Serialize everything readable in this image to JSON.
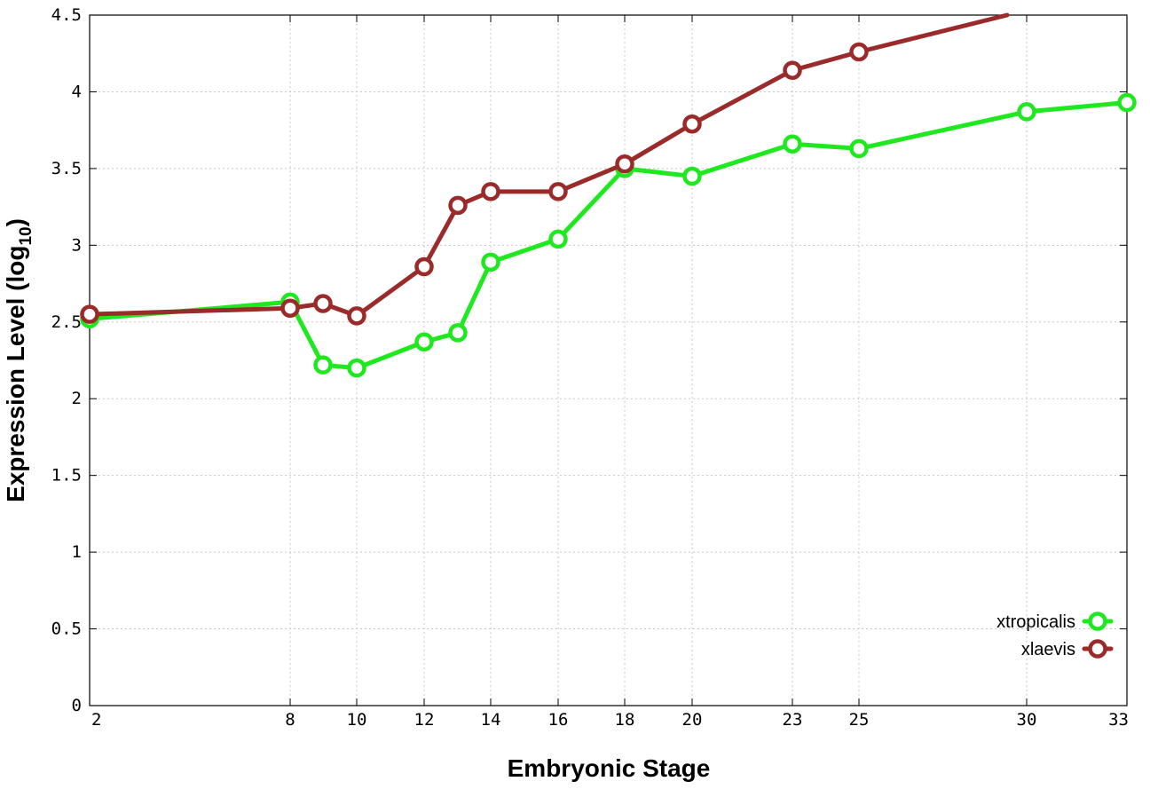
{
  "chart_data": {
    "type": "line",
    "xlabel": "Embryonic Stage",
    "ylabel": "Expression Level (log",
    "ylabel_subscript": "10",
    "ylabel_close": ")",
    "ylim": [
      0,
      4.5
    ],
    "yticks": [
      "0",
      "0.5",
      "1",
      "1.5",
      "2",
      "2.5",
      "3",
      "3.5",
      "4",
      "4.5"
    ],
    "x_categories": [
      "2",
      "8",
      "9",
      "10",
      "12",
      "13",
      "14",
      "16",
      "18",
      "20",
      "23",
      "25",
      "29",
      "30",
      "33"
    ],
    "xtick_labels": [
      "2",
      "8",
      "10",
      "12",
      "14",
      "16",
      "18",
      "20",
      "23",
      "25",
      "30",
      "33"
    ],
    "grid": true,
    "legend_position": "bottom-right",
    "series": [
      {
        "name": "xtropicalis",
        "color": "#1ee81e",
        "points": [
          {
            "x": "2",
            "y": 2.52
          },
          {
            "x": "8",
            "y": 2.63
          },
          {
            "x": "9",
            "y": 2.22
          },
          {
            "x": "10",
            "y": 2.2
          },
          {
            "x": "12",
            "y": 2.37
          },
          {
            "x": "13",
            "y": 2.43
          },
          {
            "x": "14",
            "y": 2.89
          },
          {
            "x": "16",
            "y": 3.04
          },
          {
            "x": "18",
            "y": 3.5
          },
          {
            "x": "20",
            "y": 3.45
          },
          {
            "x": "23",
            "y": 3.66
          },
          {
            "x": "25",
            "y": 3.63
          },
          {
            "x": "30",
            "y": 3.87
          },
          {
            "x": "33",
            "y": 3.93
          }
        ]
      },
      {
        "name": "xlaevis",
        "color": "#9b2b2b",
        "points": [
          {
            "x": "2",
            "y": 2.55
          },
          {
            "x": "8",
            "y": 2.59
          },
          {
            "x": "9",
            "y": 2.62
          },
          {
            "x": "10",
            "y": 2.54
          },
          {
            "x": "12",
            "y": 2.86
          },
          {
            "x": "13",
            "y": 3.26
          },
          {
            "x": "14",
            "y": 3.35
          },
          {
            "x": "16",
            "y": 3.35
          },
          {
            "x": "18",
            "y": 3.53
          },
          {
            "x": "20",
            "y": 3.79
          },
          {
            "x": "23",
            "y": 4.14
          },
          {
            "x": "25",
            "y": 4.26
          },
          {
            "x": "29",
            "y": 4.5
          }
        ],
        "markers_exclude": [
          "29"
        ]
      }
    ]
  }
}
